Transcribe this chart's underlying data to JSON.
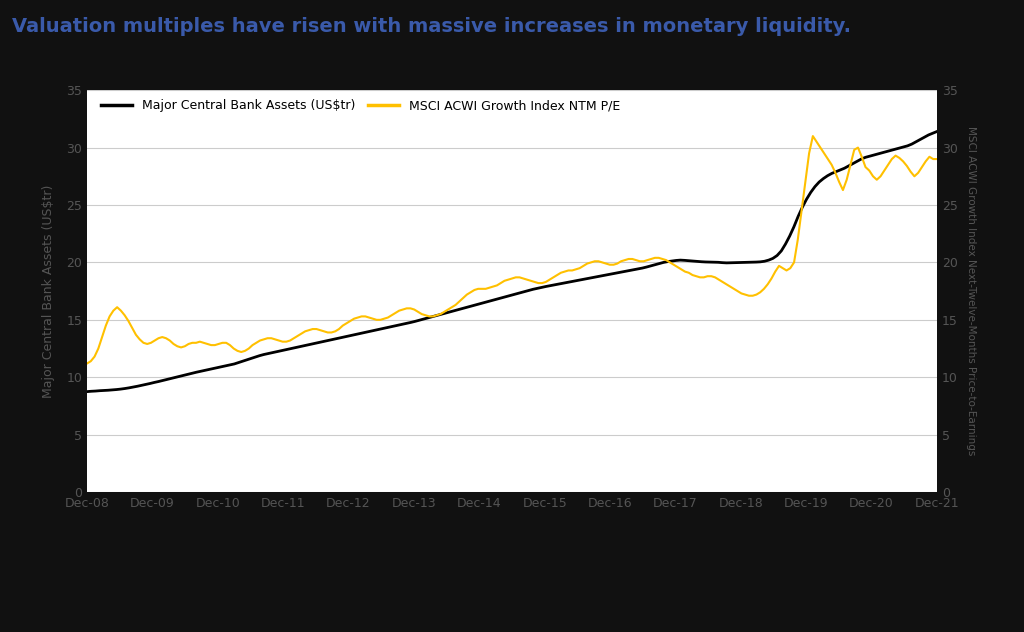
{
  "title": "Valuation multiples have risen with massive increases in monetary liquidity.",
  "title_color": "#3a5aaa",
  "title_fontsize": 14,
  "title_fontweight": "bold",
  "bg_dark": "#111111",
  "bg_chart": "#ffffff",
  "bg_bottom": "#111111",
  "ylabel_left": "Major Central Bank Assets (US$tr)",
  "ylabel_right": "MSCI ACWI Growth Index Next-Twelve-Months Price-to-Earnings",
  "ylim": [
    0,
    35
  ],
  "yticks": [
    0,
    5,
    10,
    15,
    20,
    25,
    30,
    35
  ],
  "legend1": "Major Central Bank Assets (US$tr)",
  "legend2": "MSCI ACWI Growth Index NTM P/E",
  "line1_color": "#000000",
  "line2_color": "#FFC000",
  "grid_color": "#cccccc",
  "xtick_labels": [
    "Dec-08",
    "Dec-09",
    "Dec-10",
    "Dec-11",
    "Dec-12",
    "Dec-13",
    "Dec-14",
    "Dec-15",
    "Dec-16",
    "Dec-17",
    "Dec-18",
    "Dec-19",
    "Dec-20",
    "Dec-21"
  ],
  "bank_assets": [
    8.75,
    8.78,
    8.8,
    8.83,
    8.85,
    8.87,
    8.9,
    8.93,
    8.97,
    9.02,
    9.08,
    9.15,
    9.22,
    9.3,
    9.38,
    9.46,
    9.55,
    9.63,
    9.72,
    9.81,
    9.9,
    9.99,
    10.08,
    10.17,
    10.26,
    10.35,
    10.44,
    10.52,
    10.6,
    10.68,
    10.76,
    10.84,
    10.92,
    11.0,
    11.08,
    11.16,
    11.28,
    11.4,
    11.52,
    11.64,
    11.76,
    11.88,
    11.98,
    12.06,
    12.14,
    12.22,
    12.3,
    12.38,
    12.46,
    12.54,
    12.62,
    12.7,
    12.78,
    12.86,
    12.94,
    13.02,
    13.1,
    13.18,
    13.26,
    13.34,
    13.42,
    13.5,
    13.58,
    13.66,
    13.74,
    13.82,
    13.9,
    13.98,
    14.06,
    14.14,
    14.22,
    14.3,
    14.38,
    14.46,
    14.54,
    14.62,
    14.7,
    14.78,
    14.87,
    14.97,
    15.07,
    15.17,
    15.27,
    15.37,
    15.47,
    15.57,
    15.67,
    15.77,
    15.87,
    15.97,
    16.07,
    16.17,
    16.27,
    16.37,
    16.47,
    16.57,
    16.67,
    16.77,
    16.87,
    16.97,
    17.07,
    17.17,
    17.27,
    17.37,
    17.47,
    17.57,
    17.66,
    17.74,
    17.82,
    17.9,
    17.97,
    18.04,
    18.11,
    18.18,
    18.25,
    18.32,
    18.39,
    18.46,
    18.53,
    18.6,
    18.67,
    18.74,
    18.81,
    18.88,
    18.95,
    19.02,
    19.09,
    19.16,
    19.23,
    19.3,
    19.37,
    19.44,
    19.51,
    19.6,
    19.7,
    19.8,
    19.9,
    20.0,
    20.07,
    20.12,
    20.17,
    20.2,
    20.18,
    20.15,
    20.12,
    20.09,
    20.06,
    20.04,
    20.03,
    20.02,
    20.01,
    19.98,
    19.96,
    19.97,
    19.98,
    19.99,
    20.0,
    20.01,
    20.02,
    20.03,
    20.05,
    20.1,
    20.2,
    20.35,
    20.6,
    21.0,
    21.6,
    22.3,
    23.1,
    24.0,
    24.8,
    25.5,
    26.1,
    26.6,
    27.0,
    27.3,
    27.55,
    27.75,
    27.9,
    28.05,
    28.2,
    28.4,
    28.6,
    28.8,
    29.0,
    29.15,
    29.25,
    29.35,
    29.45,
    29.55,
    29.65,
    29.75,
    29.85,
    29.95,
    30.05,
    30.15,
    30.3,
    30.5,
    30.7,
    30.9,
    31.1,
    31.25,
    31.4
  ],
  "pe_ratio": [
    11.2,
    11.4,
    11.8,
    12.5,
    13.5,
    14.5,
    15.3,
    15.8,
    16.1,
    15.8,
    15.4,
    14.9,
    14.3,
    13.7,
    13.3,
    13.0,
    12.9,
    13.0,
    13.2,
    13.4,
    13.5,
    13.4,
    13.2,
    12.9,
    12.7,
    12.6,
    12.7,
    12.9,
    13.0,
    13.0,
    13.1,
    13.0,
    12.9,
    12.8,
    12.8,
    12.9,
    13.0,
    13.0,
    12.8,
    12.5,
    12.3,
    12.2,
    12.3,
    12.5,
    12.8,
    13.0,
    13.2,
    13.3,
    13.4,
    13.4,
    13.3,
    13.2,
    13.1,
    13.1,
    13.2,
    13.4,
    13.6,
    13.8,
    14.0,
    14.1,
    14.2,
    14.2,
    14.1,
    14.0,
    13.9,
    13.9,
    14.0,
    14.2,
    14.5,
    14.7,
    14.9,
    15.1,
    15.2,
    15.3,
    15.3,
    15.2,
    15.1,
    15.0,
    15.0,
    15.1,
    15.2,
    15.4,
    15.6,
    15.8,
    15.9,
    16.0,
    16.0,
    15.9,
    15.7,
    15.5,
    15.4,
    15.3,
    15.3,
    15.4,
    15.5,
    15.7,
    15.9,
    16.1,
    16.3,
    16.6,
    16.9,
    17.2,
    17.4,
    17.6,
    17.7,
    17.7,
    17.7,
    17.8,
    17.9,
    18.0,
    18.2,
    18.4,
    18.5,
    18.6,
    18.7,
    18.7,
    18.6,
    18.5,
    18.4,
    18.3,
    18.2,
    18.2,
    18.3,
    18.5,
    18.7,
    18.9,
    19.1,
    19.2,
    19.3,
    19.3,
    19.4,
    19.5,
    19.7,
    19.9,
    20.0,
    20.1,
    20.1,
    20.0,
    19.9,
    19.8,
    19.8,
    19.9,
    20.1,
    20.2,
    20.3,
    20.3,
    20.2,
    20.1,
    20.1,
    20.2,
    20.3,
    20.4,
    20.4,
    20.3,
    20.2,
    20.0,
    19.8,
    19.6,
    19.4,
    19.2,
    19.1,
    18.9,
    18.8,
    18.7,
    18.7,
    18.8,
    18.8,
    18.7,
    18.5,
    18.3,
    18.1,
    17.9,
    17.7,
    17.5,
    17.3,
    17.2,
    17.1,
    17.1,
    17.2,
    17.4,
    17.7,
    18.1,
    18.6,
    19.2,
    19.7,
    19.5,
    19.3,
    19.5,
    20.0,
    22.0,
    24.5,
    27.0,
    29.5,
    31.0,
    30.5,
    30.0,
    29.5,
    29.0,
    28.5,
    27.8,
    27.0,
    26.3,
    27.2,
    28.5,
    29.8,
    30.0,
    29.2,
    28.3,
    28.0,
    27.5,
    27.2,
    27.5,
    28.0,
    28.5,
    29.0,
    29.3,
    29.1,
    28.8,
    28.4,
    27.9,
    27.5,
    27.8,
    28.3,
    28.8,
    29.2,
    29.0,
    29.0
  ]
}
